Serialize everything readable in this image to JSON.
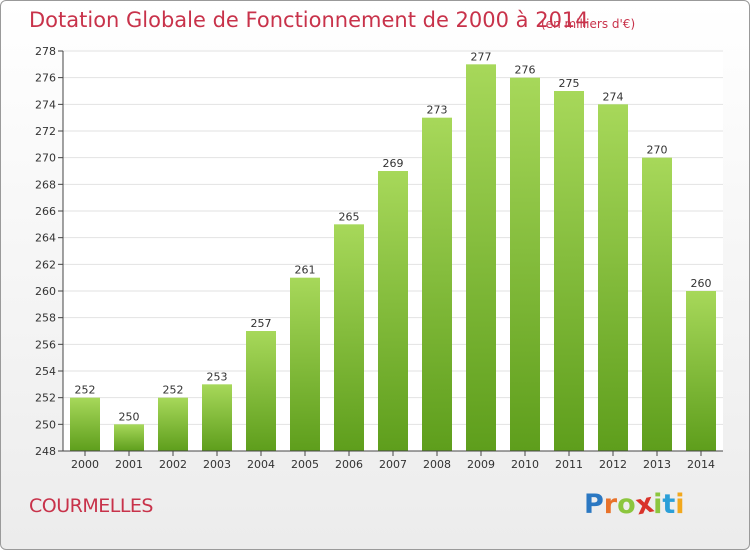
{
  "title": "Dotation Globale de Fonctionnement de 2000 à 2014",
  "subtitle": "(en milliers d'€)",
  "commune": "COURMELLES",
  "logo": {
    "letters": [
      "P",
      "r",
      "o",
      "x",
      "i",
      "t",
      "i"
    ],
    "colors": [
      "#2b78c2",
      "#e8722a",
      "#8cc63e",
      "#d9332a",
      "#8cc63e",
      "#2b9fd8",
      "#f2a81d"
    ]
  },
  "colors": {
    "title": "#c8324a",
    "bar_top": "#a7d85a",
    "bar_bottom": "#5e9e1c",
    "grid": "#e2e2e2",
    "axis": "#444444"
  },
  "chart_data": {
    "type": "bar",
    "categories": [
      "2000",
      "2001",
      "2002",
      "2003",
      "2004",
      "2005",
      "2006",
      "2007",
      "2008",
      "2009",
      "2010",
      "2011",
      "2012",
      "2013",
      "2014"
    ],
    "values": [
      252,
      250,
      252,
      253,
      257,
      261,
      265,
      269,
      273,
      277,
      276,
      275,
      274,
      270,
      260
    ],
    "data_labels": [
      "252",
      "250",
      "252",
      "253",
      "257",
      "261",
      "265",
      "269",
      "273",
      "277",
      "276",
      "275",
      "274",
      "270",
      "260"
    ],
    "title": "Dotation Globale de Fonctionnement de 2000 à 2014",
    "xlabel": "",
    "ylabel": "",
    "ylim": [
      248,
      278
    ],
    "y_ticks": [
      "248",
      "250",
      "252",
      "254",
      "256",
      "258",
      "260",
      "262",
      "264",
      "266",
      "268",
      "270",
      "272",
      "274",
      "276",
      "278"
    ],
    "grid": true,
    "legend": "none"
  }
}
